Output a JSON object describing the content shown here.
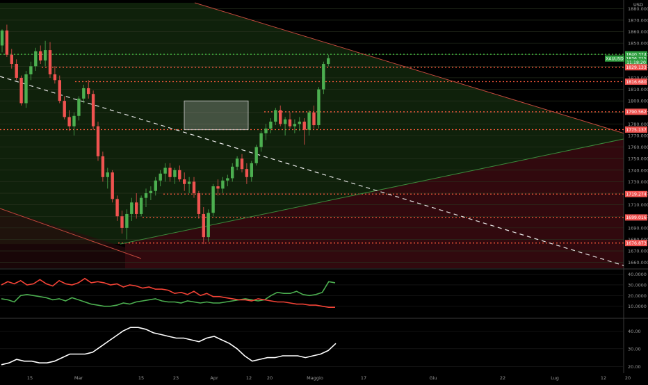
{
  "currency": "USD",
  "symbol_tag": "XAUUSD",
  "colors": {
    "up": "#4caf50",
    "down": "#ef5350",
    "level": "#ff5a3c",
    "green_level": "#3fbf3f",
    "plus_di": "#4caf50",
    "minus_di": "#f44336",
    "adx": "#ffffff",
    "zone_green": "#1b3d14",
    "zone_red": "#3a0a10"
  },
  "price_tags": [
    {
      "label": "1840.374",
      "kind": "green",
      "value": 1840.374
    },
    {
      "label": "1836.715",
      "kind": "symbol",
      "value": 1836.715
    },
    {
      "label": "11:18:20",
      "kind": "timer",
      "value": 1833.5
    },
    {
      "label": "1829.133",
      "kind": "red",
      "value": 1829.133
    },
    {
      "label": "1816.680",
      "kind": "red",
      "value": 1816.68
    },
    {
      "label": "1790.562",
      "kind": "red",
      "value": 1790.562
    },
    {
      "label": "1775.137",
      "kind": "red",
      "value": 1775.137
    },
    {
      "label": "1719.274",
      "kind": "red",
      "value": 1719.274
    },
    {
      "label": "1699.016",
      "kind": "red",
      "value": 1699.016
    },
    {
      "label": "1676.873",
      "kind": "red",
      "value": 1676.873
    }
  ],
  "time_axis": [
    {
      "label": "15",
      "x": 8
    },
    {
      "label": "Mar",
      "x": 22
    },
    {
      "label": "15",
      "x": 40
    },
    {
      "label": "23",
      "x": 50
    },
    {
      "label": "Apr",
      "x": 61
    },
    {
      "label": "12",
      "x": 71
    },
    {
      "label": "20",
      "x": 77
    },
    {
      "label": "Maggio",
      "x": 90
    },
    {
      "label": "17",
      "x": 104
    },
    {
      "label": "Giu",
      "x": 124
    },
    {
      "label": "22",
      "x": 144
    },
    {
      "label": "Lug",
      "x": 159
    },
    {
      "label": "12",
      "x": 173
    },
    {
      "label": "20",
      "x": 180
    }
  ],
  "chart_data": [
    {
      "type": "candlestick",
      "ylabel": "USD",
      "ylim": [
        1655,
        1885
      ],
      "price_ticks": [
        1660,
        1670,
        1680,
        1690,
        1700,
        1710,
        1720,
        1730,
        1740,
        1750,
        1760,
        1770,
        1780,
        1790,
        1800,
        1810,
        1820,
        1830,
        1840,
        1850,
        1860,
        1870,
        1880
      ],
      "price_tick_labels": [
        "1660.000",
        "1670.000",
        "1680.000",
        "1690.000",
        "1700.000",
        "1710.000",
        "1720.000",
        "1730.000",
        "1740.000",
        "1750.000",
        "1760.000",
        "1770.000",
        "1780.000",
        "1790.000",
        "1800.000",
        "1810.000",
        "1820.000",
        "1830.000",
        "1840.000",
        "1850.000",
        "1860.000",
        "1870.000",
        "1880.000"
      ],
      "x_domain": [
        0,
        186
      ],
      "candles": [
        [
          0,
          1848,
          1862,
          1842,
          1861
        ],
        [
          1,
          1861,
          1866,
          1838,
          1840
        ],
        [
          2,
          1840,
          1845,
          1828,
          1832
        ],
        [
          3,
          1832,
          1836,
          1818,
          1820
        ],
        [
          4,
          1820,
          1822,
          1796,
          1798
        ],
        [
          5,
          1798,
          1826,
          1794,
          1823
        ],
        [
          6,
          1823,
          1834,
          1818,
          1830
        ],
        [
          7,
          1830,
          1846,
          1826,
          1843
        ],
        [
          8,
          1843,
          1848,
          1832,
          1835
        ],
        [
          9,
          1835,
          1852,
          1830,
          1844
        ],
        [
          10,
          1844,
          1851,
          1820,
          1823
        ],
        [
          11,
          1823,
          1830,
          1815,
          1818
        ],
        [
          12,
          1818,
          1822,
          1798,
          1800
        ],
        [
          13,
          1800,
          1804,
          1784,
          1786
        ],
        [
          14,
          1786,
          1792,
          1774,
          1778
        ],
        [
          15,
          1778,
          1790,
          1770,
          1787
        ],
        [
          16,
          1787,
          1804,
          1783,
          1802
        ],
        [
          17,
          1802,
          1814,
          1798,
          1811
        ],
        [
          18,
          1811,
          1818,
          1802,
          1806
        ],
        [
          19,
          1806,
          1809,
          1775,
          1778
        ],
        [
          20,
          1778,
          1782,
          1748,
          1752
        ],
        [
          21,
          1752,
          1756,
          1730,
          1734
        ],
        [
          22,
          1734,
          1742,
          1724,
          1738
        ],
        [
          23,
          1738,
          1740,
          1712,
          1715
        ],
        [
          24,
          1715,
          1718,
          1696,
          1700
        ],
        [
          25,
          1700,
          1705,
          1685,
          1690
        ],
        [
          26,
          1690,
          1706,
          1680,
          1702
        ],
        [
          27,
          1702,
          1716,
          1696,
          1712
        ],
        [
          28,
          1712,
          1720,
          1698,
          1702
        ],
        [
          29,
          1702,
          1718,
          1700,
          1716
        ],
        [
          30,
          1716,
          1724,
          1708,
          1720
        ],
        [
          31,
          1720,
          1726,
          1714,
          1722
        ],
        [
          32,
          1722,
          1734,
          1718,
          1731
        ],
        [
          33,
          1731,
          1740,
          1726,
          1737
        ],
        [
          34,
          1737,
          1746,
          1730,
          1742
        ],
        [
          35,
          1742,
          1746,
          1730,
          1734
        ],
        [
          36,
          1734,
          1742,
          1728,
          1740
        ],
        [
          37,
          1740,
          1744,
          1730,
          1732
        ],
        [
          38,
          1732,
          1738,
          1722,
          1728
        ],
        [
          39,
          1728,
          1734,
          1720,
          1730
        ],
        [
          40,
          1730,
          1734,
          1716,
          1720
        ],
        [
          41,
          1720,
          1722,
          1698,
          1702
        ],
        [
          42,
          1702,
          1708,
          1676,
          1682
        ],
        [
          43,
          1682,
          1706,
          1678,
          1703
        ],
        [
          44,
          1703,
          1728,
          1700,
          1726
        ],
        [
          45,
          1726,
          1732,
          1718,
          1724
        ],
        [
          46,
          1724,
          1734,
          1720,
          1731
        ],
        [
          47,
          1731,
          1736,
          1726,
          1733
        ],
        [
          48,
          1733,
          1746,
          1730,
          1743
        ],
        [
          49,
          1743,
          1752,
          1740,
          1750
        ],
        [
          50,
          1750,
          1754,
          1738,
          1741
        ],
        [
          51,
          1741,
          1746,
          1728,
          1734
        ],
        [
          52,
          1734,
          1748,
          1730,
          1746
        ],
        [
          53,
          1746,
          1762,
          1744,
          1760
        ],
        [
          54,
          1760,
          1774,
          1756,
          1772
        ],
        [
          55,
          1772,
          1780,
          1766,
          1776
        ],
        [
          56,
          1776,
          1785,
          1772,
          1782
        ],
        [
          57,
          1782,
          1794,
          1779,
          1792
        ],
        [
          58,
          1792,
          1796,
          1778,
          1780
        ],
        [
          59,
          1780,
          1786,
          1770,
          1784
        ],
        [
          60,
          1784,
          1790,
          1776,
          1778
        ],
        [
          61,
          1778,
          1784,
          1772,
          1780
        ],
        [
          62,
          1780,
          1786,
          1774,
          1782
        ],
        [
          63,
          1782,
          1785,
          1762,
          1775
        ],
        [
          64,
          1775,
          1792,
          1770,
          1790
        ],
        [
          65,
          1790,
          1796,
          1776,
          1779
        ],
        [
          66,
          1779,
          1812,
          1776,
          1810
        ],
        [
          67,
          1810,
          1834,
          1806,
          1832
        ],
        [
          68,
          1832,
          1840,
          1830,
          1837
        ]
      ],
      "levels_red": [
        1829.133,
        1816.68,
        1790.562,
        1775.137,
        1719.274,
        1699.016,
        1676.873
      ],
      "level_green": 1840.374,
      "range_box": {
        "x0": 52,
        "x1": 70,
        "y0": 1775,
        "y1": 1800
      }
    },
    {
      "type": "line",
      "ylim": [
        0,
        43
      ],
      "ticks": [
        10,
        20,
        30,
        40
      ],
      "tick_labels": [
        "10.0000",
        "20.0000",
        "30.0000",
        "40.0000"
      ],
      "series": [
        {
          "key": "plus_di",
          "values": [
            17,
            16,
            14,
            20,
            21,
            20,
            19,
            18,
            16,
            17,
            15,
            18,
            16,
            14,
            12,
            11,
            10,
            10,
            11,
            13,
            12,
            14,
            15,
            16,
            17,
            15,
            14,
            14,
            13,
            15,
            14,
            13,
            14,
            13,
            13,
            14,
            15,
            16,
            17,
            16,
            15,
            16,
            20,
            23,
            22,
            22,
            24,
            21,
            20,
            21,
            23,
            33,
            32
          ]
        },
        {
          "key": "minus_di",
          "values": [
            30,
            33,
            31,
            34,
            30,
            31,
            35,
            31,
            29,
            34,
            31,
            30,
            32,
            36,
            32,
            33,
            32,
            30,
            31,
            28,
            30,
            29,
            27,
            28,
            26,
            26,
            25,
            22,
            23,
            21,
            24,
            20,
            22,
            19,
            19,
            18,
            17,
            16,
            16,
            15,
            17,
            16,
            15,
            14,
            14,
            13,
            12,
            12,
            11,
            11,
            10,
            9,
            9
          ]
        }
      ]
    },
    {
      "type": "line",
      "ylim": [
        17,
        46
      ],
      "ticks": [
        20,
        30,
        40
      ],
      "tick_labels": [
        "20.00",
        "30.00",
        "40.00"
      ],
      "series": [
        {
          "key": "adx",
          "values": [
            21,
            22,
            24,
            23,
            23,
            22,
            22,
            23,
            25,
            27,
            27,
            27,
            28,
            31,
            34,
            37,
            40,
            42,
            42,
            41,
            39,
            38,
            37,
            36,
            36,
            35,
            34,
            36,
            37,
            35,
            33,
            30,
            26,
            23,
            24,
            25,
            25,
            26,
            26,
            26,
            25,
            26,
            27,
            29,
            33
          ]
        }
      ]
    }
  ]
}
